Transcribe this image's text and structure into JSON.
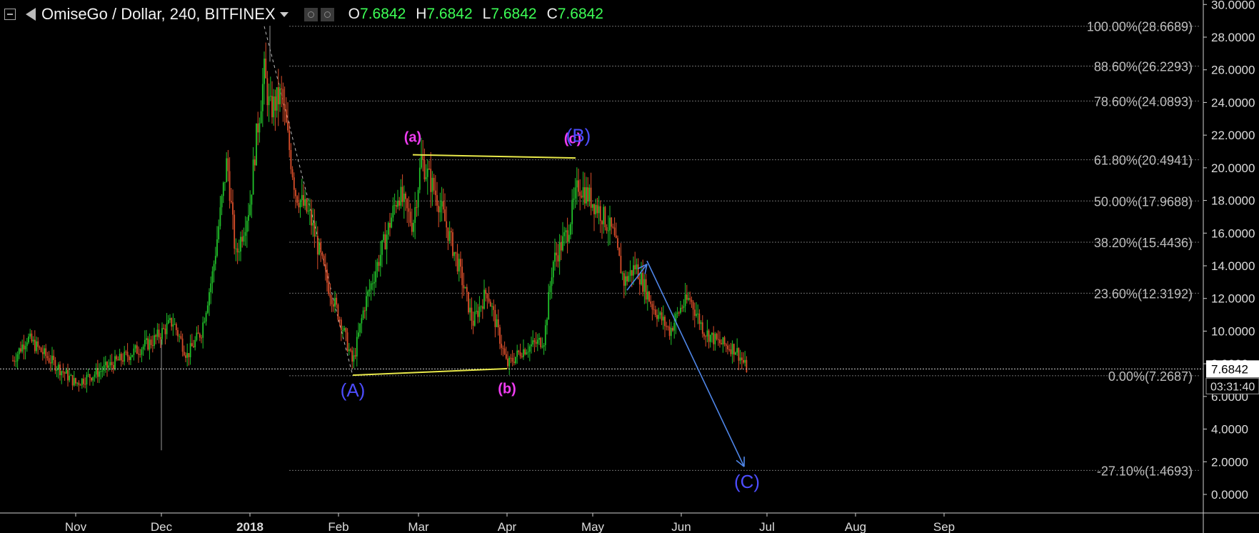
{
  "header": {
    "title": "OmiseGo / Dollar, 240, BITFINEX",
    "ohlc": [
      {
        "key": "O",
        "value": "7.6842"
      },
      {
        "key": "H",
        "value": "7.6842"
      },
      {
        "key": "L",
        "value": "7.6842"
      },
      {
        "key": "C",
        "value": "7.6842"
      }
    ]
  },
  "colors": {
    "background": "#000000",
    "up_candle": "#21c12a",
    "down_candle": "#d94e2a",
    "fib_line": "#6f6f6f",
    "trendline": "#e8e84a",
    "wave_major": "#4d4dff",
    "wave_minor": "#ee3cf0",
    "arrow": "#4f86e8"
  },
  "chart_data": {
    "type": "candlestick",
    "y_axis": {
      "range": [
        -0.8,
        30.5
      ],
      "ticks": [
        "30.0000",
        "28.0000",
        "26.0000",
        "24.0000",
        "22.0000",
        "20.0000",
        "18.0000",
        "16.0000",
        "14.0000",
        "12.0000",
        "10.0000",
        "8.0000",
        "6.0000",
        "4.0000",
        "2.0000",
        "0.0000"
      ],
      "tick_values": [
        30,
        28,
        26,
        24,
        22,
        20,
        18,
        16,
        14,
        12,
        10,
        8,
        6,
        4,
        2,
        0
      ]
    },
    "x_axis": {
      "labels": [
        "Nov",
        "Dec",
        "2018",
        "Feb",
        "Mar",
        "Apr",
        "May",
        "Jun",
        "Jul",
        "Aug",
        "Sep"
      ],
      "bold": [
        "2018"
      ]
    },
    "last_price": {
      "label": "7.6842",
      "value": 7.6842,
      "countdown": "03:31:40"
    },
    "price_path": [
      [
        "Oct 10",
        8.2
      ],
      [
        "Oct 15",
        9.6
      ],
      [
        "Oct 22",
        8.4
      ],
      [
        "Nov 1",
        6.8
      ],
      [
        "Nov 10",
        7.6
      ],
      [
        "Nov 20",
        8.6
      ],
      [
        "Nov 28",
        9.4
      ],
      [
        "Dec 5",
        10.6
      ],
      [
        "Dec 10",
        8.5
      ],
      [
        "Dec 15",
        10.0
      ],
      [
        "Dec 19",
        13.6
      ],
      [
        "Dec 24",
        20.5
      ],
      [
        "Dec 27",
        14.5
      ],
      [
        "Jan 1",
        17.8
      ],
      [
        "Jan 3",
        21.5
      ],
      [
        "Jan 6",
        25.8
      ],
      [
        "Jan 8",
        23.5
      ],
      [
        "Jan 12",
        24.5
      ],
      [
        "Jan 17",
        18.5
      ],
      [
        "Jan 22",
        17.0
      ],
      [
        "Jan 28",
        13.0
      ],
      [
        "Feb 2",
        10.5
      ],
      [
        "Feb 6",
        8.0
      ],
      [
        "Feb 10",
        11.5
      ],
      [
        "Feb 18",
        16.0
      ],
      [
        "Feb 22",
        18.5
      ],
      [
        "Feb 27",
        16.5
      ],
      [
        "Mar 2",
        20.5
      ],
      [
        "Mar 8",
        18.0
      ],
      [
        "Mar 15",
        14.0
      ],
      [
        "Mar 20",
        10.5
      ],
      [
        "Mar 25",
        12.5
      ],
      [
        "Apr 1",
        7.9
      ],
      [
        "Apr 6",
        8.8
      ],
      [
        "Apr 14",
        9.5
      ],
      [
        "Apr 17",
        14.2
      ],
      [
        "Apr 22",
        16.0
      ],
      [
        "Apr 26",
        19.0
      ],
      [
        "May 3",
        17.5
      ],
      [
        "May 8",
        16.0
      ],
      [
        "May 12",
        13.0
      ],
      [
        "May 16",
        14.0
      ],
      [
        "May 22",
        11.5
      ],
      [
        "May 28",
        10.0
      ],
      [
        "Jun 1",
        11.5
      ],
      [
        "Jun 4",
        12.0
      ],
      [
        "Jun 9",
        10.0
      ],
      [
        "Jun 14",
        9.3
      ],
      [
        "Jun 20",
        8.9
      ],
      [
        "Jun 24",
        7.68
      ]
    ],
    "fib_levels": [
      {
        "label": "100.00%(28.6689)",
        "value": 28.6689
      },
      {
        "label": "88.60%(26.2293)",
        "value": 26.2293
      },
      {
        "label": "78.60%(24.0893)",
        "value": 24.0893
      },
      {
        "label": "61.80%(20.4941)",
        "value": 20.4941
      },
      {
        "label": "50.00%(17.9688)",
        "value": 17.9688
      },
      {
        "label": "38.20%(15.4436)",
        "value": 15.4436
      },
      {
        "label": "23.60%(12.3192)",
        "value": 12.3192
      },
      {
        "label": "0.00%(7.2687)",
        "value": 7.2687
      },
      {
        "label": "-27.10%(1.4693)",
        "value": 1.4693
      }
    ],
    "trendlines": [
      {
        "from": [
          "Feb 6",
          7.3
        ],
        "to": [
          "Apr 1",
          7.7
        ]
      },
      {
        "from": [
          "Feb 27",
          20.8
        ],
        "to": [
          "Apr 25",
          20.6
        ]
      }
    ],
    "wave_labels": [
      {
        "text": "(A)",
        "at": [
          "Feb 6",
          6.0
        ],
        "style": "major"
      },
      {
        "text": "(a)",
        "at": [
          "Feb 27",
          21.6
        ],
        "style": "minor"
      },
      {
        "text": "(b)",
        "at": [
          "Apr 1",
          6.2
        ],
        "style": "minor"
      },
      {
        "text": "(c)",
        "at": [
          "Apr 24",
          21.5
        ],
        "style": "minor"
      },
      {
        "text": "(B)",
        "at": [
          "Apr 26",
          21.6
        ],
        "style": "major"
      },
      {
        "text": "(C)",
        "at": [
          "Jun 24",
          0.4
        ],
        "style": "major"
      }
    ],
    "arrows": [
      {
        "from": [
          "May 13",
          12.5
        ],
        "to": [
          "May 20",
          14.1
        ]
      },
      {
        "from": [
          "May 20",
          14.3
        ],
        "to": [
          "Jun 23",
          1.7
        ]
      }
    ]
  }
}
